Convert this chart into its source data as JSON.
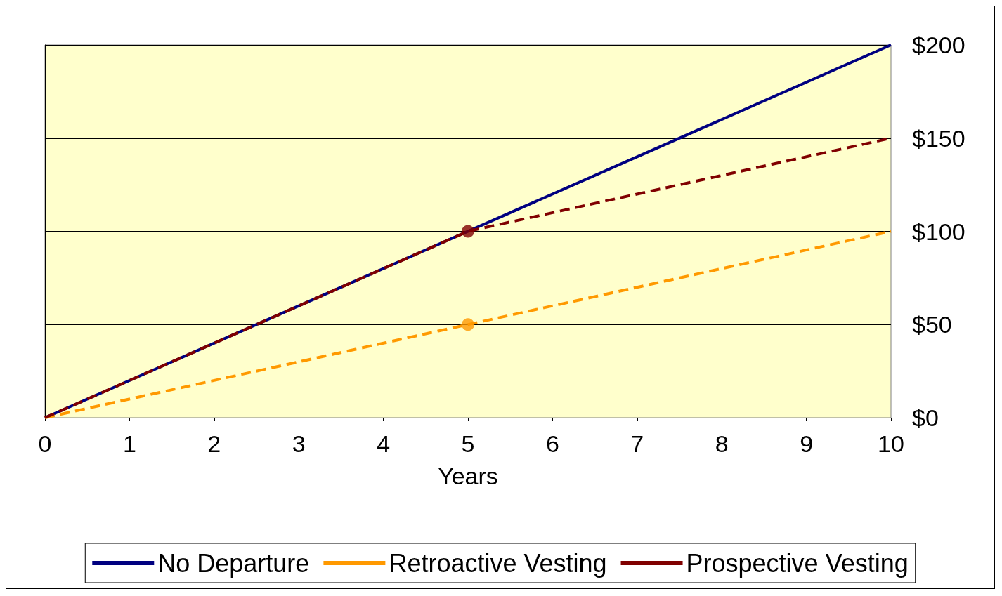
{
  "chart_data": {
    "type": "line",
    "xlabel": "Years",
    "xlim": [
      0,
      10
    ],
    "xticks": [
      0,
      1,
      2,
      3,
      4,
      5,
      6,
      7,
      8,
      9,
      10
    ],
    "ylim": [
      0,
      200
    ],
    "yticks": [
      {
        "value": 0,
        "label": "$0"
      },
      {
        "value": 50,
        "label": "$50"
      },
      {
        "value": 100,
        "label": "$100"
      },
      {
        "value": 150,
        "label": "$150"
      },
      {
        "value": 200,
        "label": "$200"
      }
    ],
    "grid": "y",
    "legend": "bottom",
    "marker": "none",
    "series": [
      {
        "name": "No Departure",
        "color": "#000080",
        "x": [
          0,
          10
        ],
        "values": [
          0,
          200
        ],
        "line_style": "solid"
      },
      {
        "name": "Retroactive Vesting",
        "color": "#ff9900",
        "x": [
          0,
          10
        ],
        "values": [
          0,
          100
        ],
        "line_style": "dashed"
      },
      {
        "name": "Prospective Vesting",
        "color": "#800000",
        "x": [
          0,
          5,
          10
        ],
        "values": [
          0,
          100,
          150
        ],
        "line_style": "dashed"
      },
      {
        "type": "scatter",
        "color": "#ff9900",
        "x": [
          5
        ],
        "values": [
          50
        ],
        "marker": "circle"
      },
      {
        "type": "scatter",
        "color": "#800000",
        "x": [
          5
        ],
        "values": [
          100
        ],
        "marker": "circle"
      }
    ]
  }
}
